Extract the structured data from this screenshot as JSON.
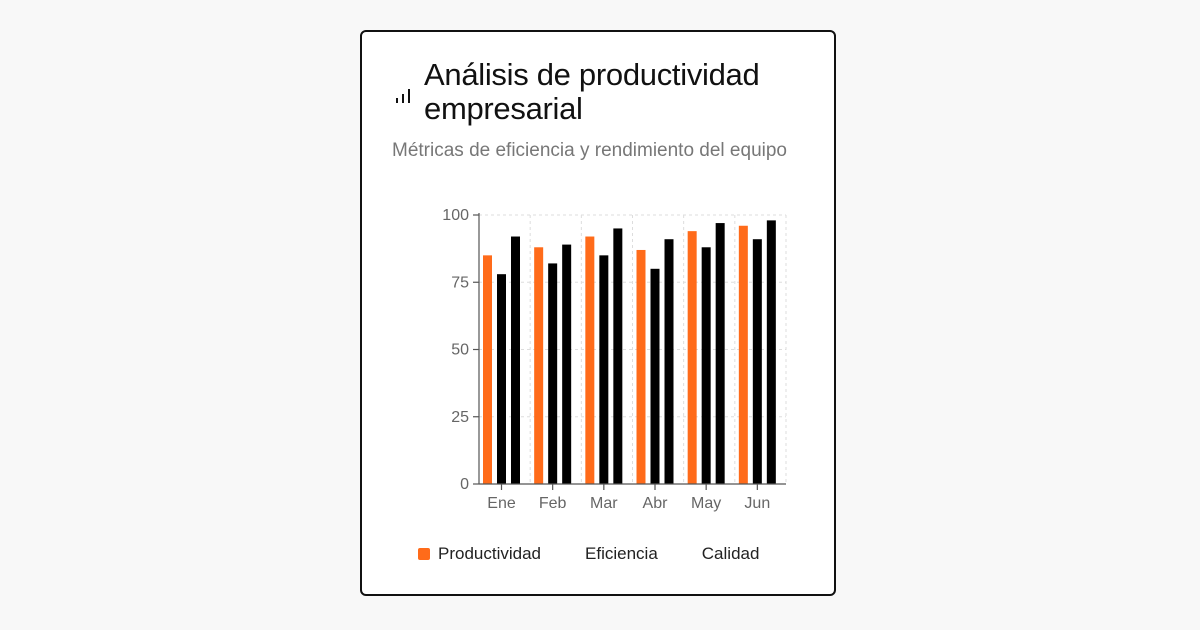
{
  "card": {
    "title": "Análisis de productividad empresarial",
    "subtitle": "Métricas de eficiencia y rendimiento del equipo",
    "title_icon": "bar-chart-icon"
  },
  "colors": {
    "productividad": "#ff6b1a",
    "eficiencia": "#000000",
    "calidad": "#000000",
    "axis": "#555555",
    "grid": "#dddddd"
  },
  "chart_data": {
    "type": "bar",
    "title": "Análisis de productividad empresarial",
    "subtitle": "Métricas de eficiencia y rendimiento del equipo",
    "categories": [
      "Ene",
      "Feb",
      "Mar",
      "Abr",
      "May",
      "Jun"
    ],
    "series": [
      {
        "name": "Productividad",
        "values": [
          85,
          88,
          92,
          87,
          94,
          96
        ]
      },
      {
        "name": "Eficiencia",
        "values": [
          78,
          82,
          85,
          80,
          88,
          91
        ]
      },
      {
        "name": "Calidad",
        "values": [
          92,
          89,
          95,
          91,
          97,
          98
        ]
      }
    ],
    "yticks": [
      0,
      25,
      50,
      75,
      100
    ],
    "ylim": [
      0,
      100
    ],
    "grid": true,
    "legend_position": "bottom"
  }
}
